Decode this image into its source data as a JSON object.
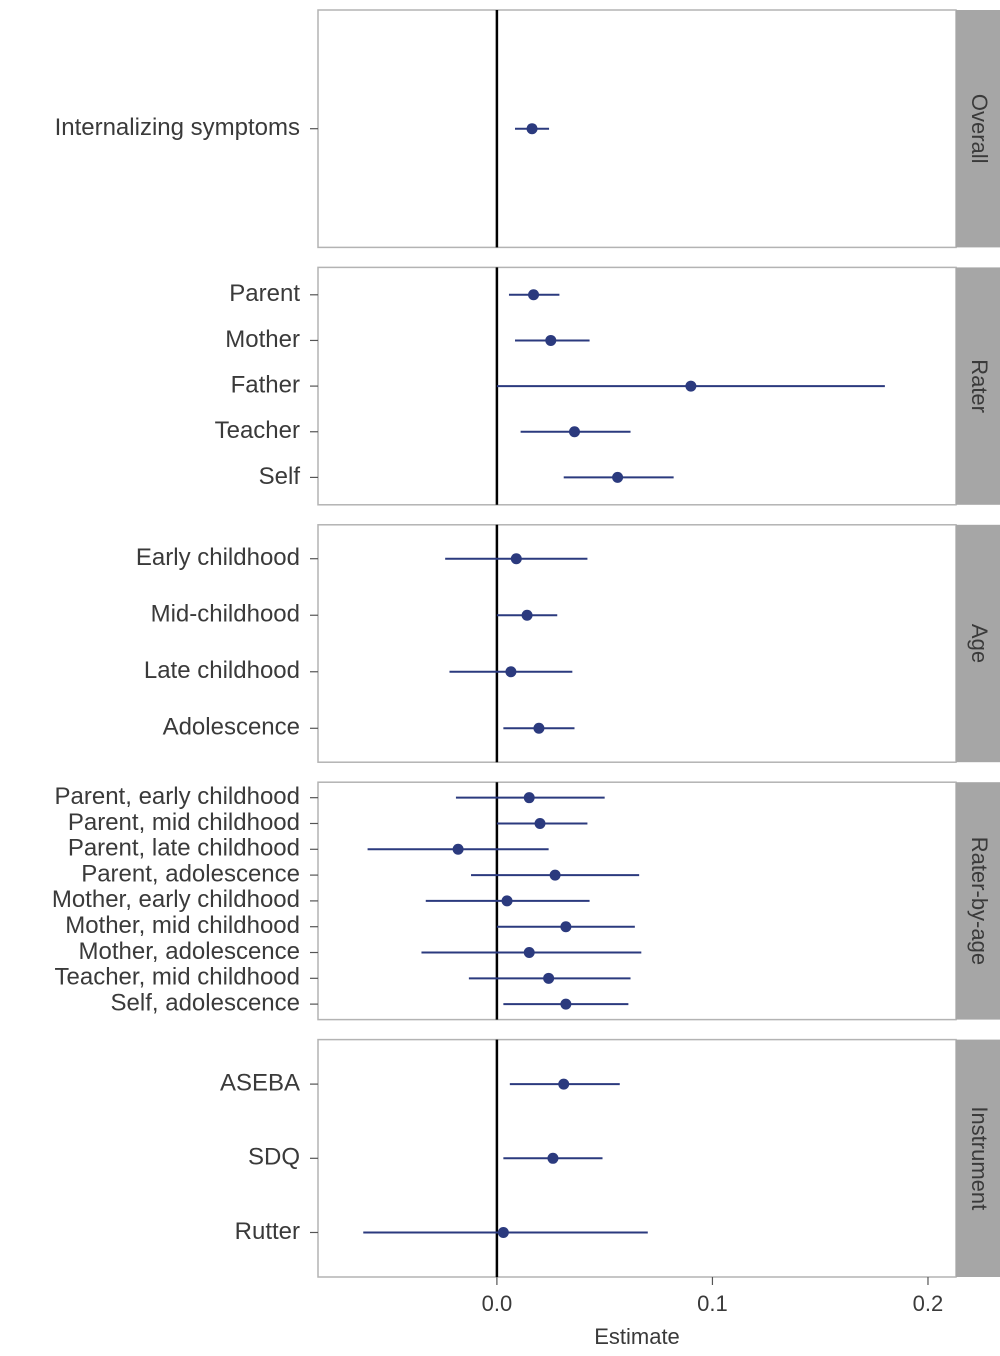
{
  "chart_data": [
    {
      "type": "forest",
      "strip": "Overall",
      "categories": [
        "Internalizing symptoms"
      ],
      "values": [
        0.0163
      ],
      "lower": [
        0.0084
      ],
      "upper": [
        0.0242
      ]
    },
    {
      "type": "forest",
      "strip": "Rater",
      "categories": [
        "Parent",
        "Mother",
        "Father",
        "Teacher",
        "Self"
      ],
      "values": [
        0.017,
        0.025,
        0.09,
        0.036,
        0.056
      ],
      "lower": [
        0.0056,
        0.0084,
        0.0,
        0.011,
        0.031
      ],
      "upper": [
        0.029,
        0.043,
        0.18,
        0.062,
        0.082
      ]
    },
    {
      "type": "forest",
      "strip": "Age",
      "categories": [
        "Early childhood",
        "Mid-childhood",
        "Late childhood",
        "Adolescence"
      ],
      "values": [
        0.009,
        0.014,
        0.0065,
        0.0195
      ],
      "lower": [
        -0.024,
        0.0,
        -0.022,
        0.003
      ],
      "upper": [
        0.042,
        0.028,
        0.035,
        0.036
      ]
    },
    {
      "type": "forest",
      "strip": "Rater-by-age",
      "categories": [
        "Parent, early childhood",
        "Parent, mid childhood",
        "Parent, late childhood",
        "Parent, adolescence",
        "Mother, early childhood",
        "Mother, mid childhood",
        "Mother, adolescence",
        "Teacher, mid childhood",
        "Self, adolescence"
      ],
      "values": [
        0.015,
        0.02,
        -0.018,
        0.027,
        0.0047,
        0.032,
        0.015,
        0.024,
        0.032
      ],
      "lower": [
        -0.019,
        0.0,
        -0.06,
        -0.012,
        -0.033,
        0.0,
        -0.035,
        -0.013,
        0.003
      ],
      "upper": [
        0.05,
        0.042,
        0.024,
        0.066,
        0.043,
        0.064,
        0.067,
        0.062,
        0.061
      ]
    },
    {
      "type": "forest",
      "strip": "Instrument",
      "categories": [
        "ASEBA",
        "SDQ",
        "Rutter"
      ],
      "values": [
        0.031,
        0.026,
        0.003
      ],
      "lower": [
        0.006,
        0.003,
        -0.062
      ],
      "upper": [
        0.057,
        0.049,
        0.07
      ]
    }
  ],
  "axis": {
    "xlabel": "Estimate",
    "xlim": [
      -0.083,
      0.213
    ],
    "xticks": [
      {
        "value": 0,
        "label": "0.0"
      },
      0.1,
      0.2
    ],
    "reference_line": 0,
    "color": "#2b3a7e"
  }
}
